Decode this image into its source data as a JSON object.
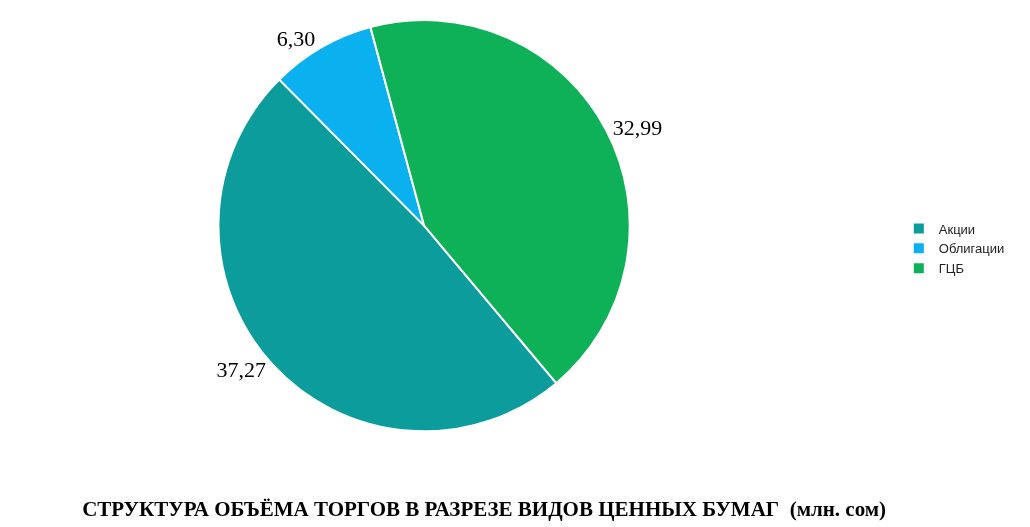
{
  "chart_data": {
    "type": "pie",
    "title": "СТРУКТУРА ОБЪЁМА ТОРГОВ В РАЗРЕЗЕ ВИДОВ ЦЕННЫХ БУМАГ  (млн. сом)",
    "categories": [
      "Акции",
      "Облигации",
      "ГЦБ"
    ],
    "values": [
      37.27,
      6.3,
      32.99
    ],
    "value_labels": [
      "37,27",
      "6,30",
      "32,99"
    ],
    "colors": [
      "#0c9c9c",
      "#0bb0ee",
      "#0fb158"
    ],
    "legend": "right"
  }
}
